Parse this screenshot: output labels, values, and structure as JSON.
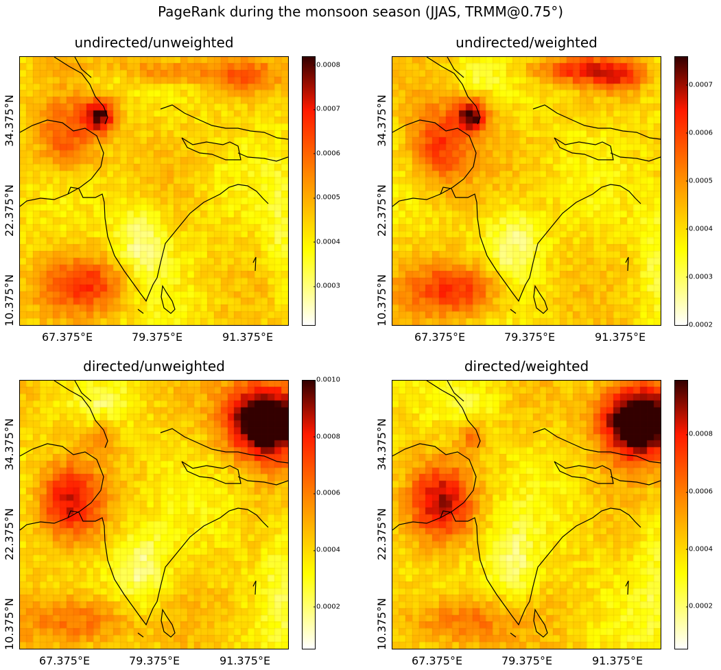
{
  "figure": {
    "title": "PageRank during the monsoon season (JJAS, TRMM@0.75°)",
    "xticks": [
      "67.375°E",
      "79.375°E",
      "91.375°E"
    ],
    "yticks": [
      "10.375°N",
      "22.375°N",
      "34.375°N"
    ],
    "colormap": "hot_r",
    "colors": {
      "low": "#ffffff",
      "mid1": "#ffff00",
      "mid2": "#ff8c00",
      "mid3": "#ff1a00",
      "high": "#330000",
      "coast": "#000000"
    }
  },
  "chart_data": [
    {
      "type": "heatmap",
      "title": "undirected/unweighted",
      "colorbar_ticks": [
        "0.0003",
        "0.0004",
        "0.0005",
        "0.0006",
        "0.0007",
        "0.0008"
      ],
      "colorbar_values": [
        0.0003,
        0.0004,
        0.0005,
        0.0006,
        0.0007,
        0.0008
      ],
      "vmin": 0.00021,
      "vmax": 0.00082
    },
    {
      "type": "heatmap",
      "title": "undirected/weighted",
      "colorbar_ticks": [
        "0.0002",
        "0.0003",
        "0.0004",
        "0.0005",
        "0.0006",
        "0.0007"
      ],
      "colorbar_values": [
        0.0002,
        0.0003,
        0.0004,
        0.0005,
        0.0006,
        0.0007
      ],
      "vmin": 0.000198,
      "vmax": 0.00076
    },
    {
      "type": "heatmap",
      "title": "directed/unweighted",
      "colorbar_ticks": [
        "0.0002",
        "0.0004",
        "0.0006",
        "0.0008",
        "0.0010"
      ],
      "colorbar_values": [
        0.0002,
        0.0004,
        0.0006,
        0.0008,
        0.001
      ],
      "vmin": 5e-05,
      "vmax": 0.001
    },
    {
      "type": "heatmap",
      "title": "directed/weighted",
      "colorbar_ticks": [
        "0.0002",
        "0.0004",
        "0.0006",
        "0.0008"
      ],
      "colorbar_values": [
        0.0002,
        0.0004,
        0.0006,
        0.0008
      ],
      "vmin": 5e-05,
      "vmax": 0.00099
    }
  ]
}
